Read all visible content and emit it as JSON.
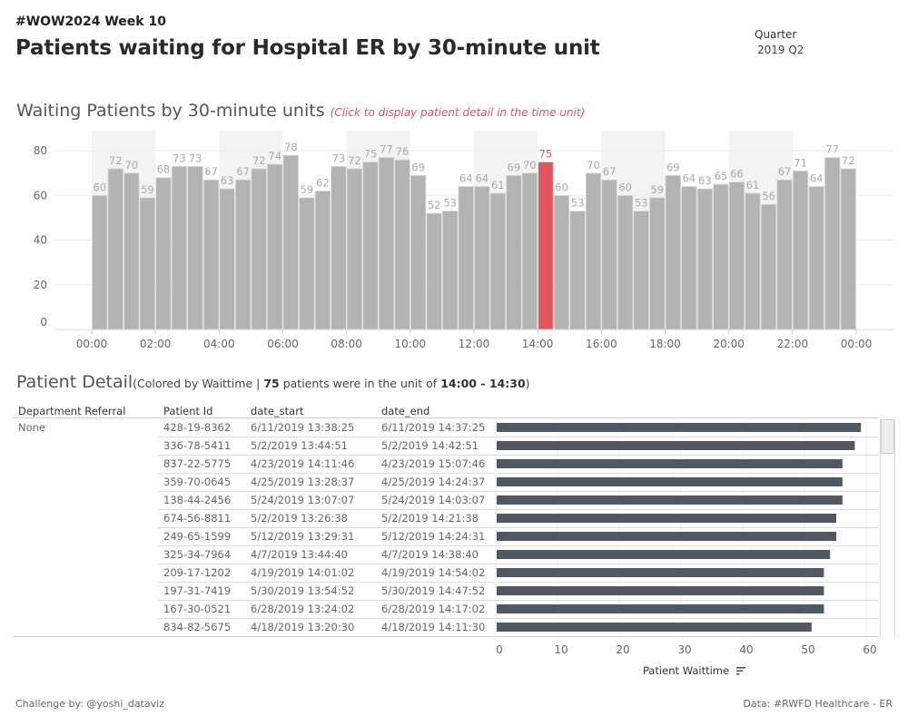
{
  "header": {
    "kicker": "#WOW2024 Week 10",
    "title": "Patients waiting for Hospital ER by 30-minute unit"
  },
  "filter": {
    "label": "Quarter",
    "value": "2019 Q2"
  },
  "chart1": {
    "title": "Waiting Patients by 30-minute units",
    "note": "(Click to display patient detail in the time unit)"
  },
  "detail": {
    "title": "Patient Detail",
    "sub_prefix": "(Colored by Waittime | ",
    "count": "75",
    "sub_mid": " patients were in the unit of ",
    "unit": "14:00 - 14:30",
    "sub_suffix": ")",
    "columns": [
      "Department Referral",
      "Patient Id",
      "date_start",
      "date_end"
    ],
    "department": "None",
    "rows": [
      {
        "id": "428-19-8362",
        "start": "6/11/2019 13:38:25",
        "end": "6/11/2019 14:37:25",
        "wait": 59
      },
      {
        "id": "336-78-5411",
        "start": "5/2/2019 13:44:51",
        "end": "5/2/2019 14:42:51",
        "wait": 58
      },
      {
        "id": "837-22-5775",
        "start": "4/23/2019 14:11:46",
        "end": "4/23/2019 15:07:46",
        "wait": 56
      },
      {
        "id": "359-70-0645",
        "start": "4/25/2019 13:28:37",
        "end": "4/25/2019 14:24:37",
        "wait": 56
      },
      {
        "id": "138-44-2456",
        "start": "5/24/2019 13:07:07",
        "end": "5/24/2019 14:03:07",
        "wait": 56
      },
      {
        "id": "674-56-8811",
        "start": "5/2/2019 13:26:38",
        "end": "5/2/2019 14:21:38",
        "wait": 55
      },
      {
        "id": "249-65-1599",
        "start": "5/12/2019 13:29:31",
        "end": "5/12/2019 14:24:31",
        "wait": 55
      },
      {
        "id": "325-34-7964",
        "start": "4/7/2019 13:44:40",
        "end": "4/7/2019 14:38:40",
        "wait": 54
      },
      {
        "id": "209-17-1202",
        "start": "4/19/2019 14:01:02",
        "end": "4/19/2019 14:54:02",
        "wait": 53
      },
      {
        "id": "197-31-7419",
        "start": "5/30/2019 13:54:52",
        "end": "5/30/2019 14:47:52",
        "wait": 53
      },
      {
        "id": "167-30-0521",
        "start": "6/28/2019 13:24:02",
        "end": "6/28/2019 14:17:02",
        "wait": 53
      },
      {
        "id": "834-82-5675",
        "start": "4/18/2019 13:20:30",
        "end": "4/18/2019 14:11:30",
        "wait": 51
      }
    ],
    "axis_label": "Patient Waittime"
  },
  "footer": {
    "left": "Challenge by: @yoshi_dataviz",
    "right": "Data: #RWFD Healthcare - ER"
  },
  "colors": {
    "bar": "#b1b3b4",
    "highlight": "#e0565b",
    "band": "#f3f3f3",
    "detail_bar": "#4f5863",
    "label": "#aaaaaa"
  },
  "chart_data": [
    {
      "type": "bar",
      "title": "Waiting Patients by 30-minute units",
      "xlabel": "",
      "ylabel": "",
      "ylim": [
        0,
        88
      ],
      "yticks": [
        0,
        20,
        40,
        60,
        80
      ],
      "xticks": [
        "00:00",
        "02:00",
        "04:00",
        "06:00",
        "08:00",
        "10:00",
        "12:00",
        "14:00",
        "16:00",
        "18:00",
        "20:00",
        "22:00",
        "00:00"
      ],
      "categories": [
        "00:00",
        "00:30",
        "01:00",
        "01:30",
        "02:00",
        "02:30",
        "03:00",
        "03:30",
        "04:00",
        "04:30",
        "05:00",
        "05:30",
        "06:00",
        "06:30",
        "07:00",
        "07:30",
        "08:00",
        "08:30",
        "09:00",
        "09:30",
        "10:00",
        "10:30",
        "11:00",
        "11:30",
        "12:00",
        "12:30",
        "13:00",
        "13:30",
        "14:00",
        "14:30",
        "15:00",
        "15:30",
        "16:00",
        "16:30",
        "17:00",
        "17:30",
        "18:00",
        "18:30",
        "19:00",
        "19:30",
        "20:00",
        "20:30",
        "21:00",
        "21:30",
        "22:00",
        "22:30",
        "23:00",
        "23:30"
      ],
      "values": [
        60,
        72,
        70,
        59,
        68,
        73,
        73,
        67,
        63,
        67,
        72,
        74,
        78,
        59,
        62,
        73,
        72,
        75,
        77,
        76,
        69,
        52,
        53,
        64,
        64,
        61,
        69,
        70,
        75,
        60,
        53,
        70,
        67,
        60,
        53,
        59,
        69,
        64,
        63,
        65,
        66,
        61,
        56,
        67,
        71,
        64,
        77,
        72
      ],
      "highlighted": "14:00",
      "shaded_bands": [
        [
          "00:00",
          "02:00"
        ],
        [
          "04:00",
          "06:00"
        ],
        [
          "08:00",
          "10:00"
        ],
        [
          "12:00",
          "14:00"
        ],
        [
          "16:00",
          "18:00"
        ],
        [
          "20:00",
          "22:00"
        ]
      ],
      "grid": true,
      "data_labels": true
    },
    {
      "type": "bar",
      "orientation": "horizontal",
      "title": "Patient Detail",
      "xlabel": "Patient Waittime",
      "xlim": [
        0,
        62
      ],
      "xticks": [
        0,
        10,
        20,
        30,
        40,
        50,
        60
      ],
      "categories": [
        "428-19-8362",
        "336-78-5411",
        "837-22-5775",
        "359-70-0645",
        "138-44-2456",
        "674-56-8811",
        "249-65-1599",
        "325-34-7964",
        "209-17-1202",
        "197-31-7419",
        "167-30-0521",
        "834-82-5675"
      ],
      "values": [
        59,
        58,
        56,
        56,
        56,
        55,
        55,
        54,
        53,
        53,
        53,
        51
      ],
      "grid": true
    }
  ]
}
